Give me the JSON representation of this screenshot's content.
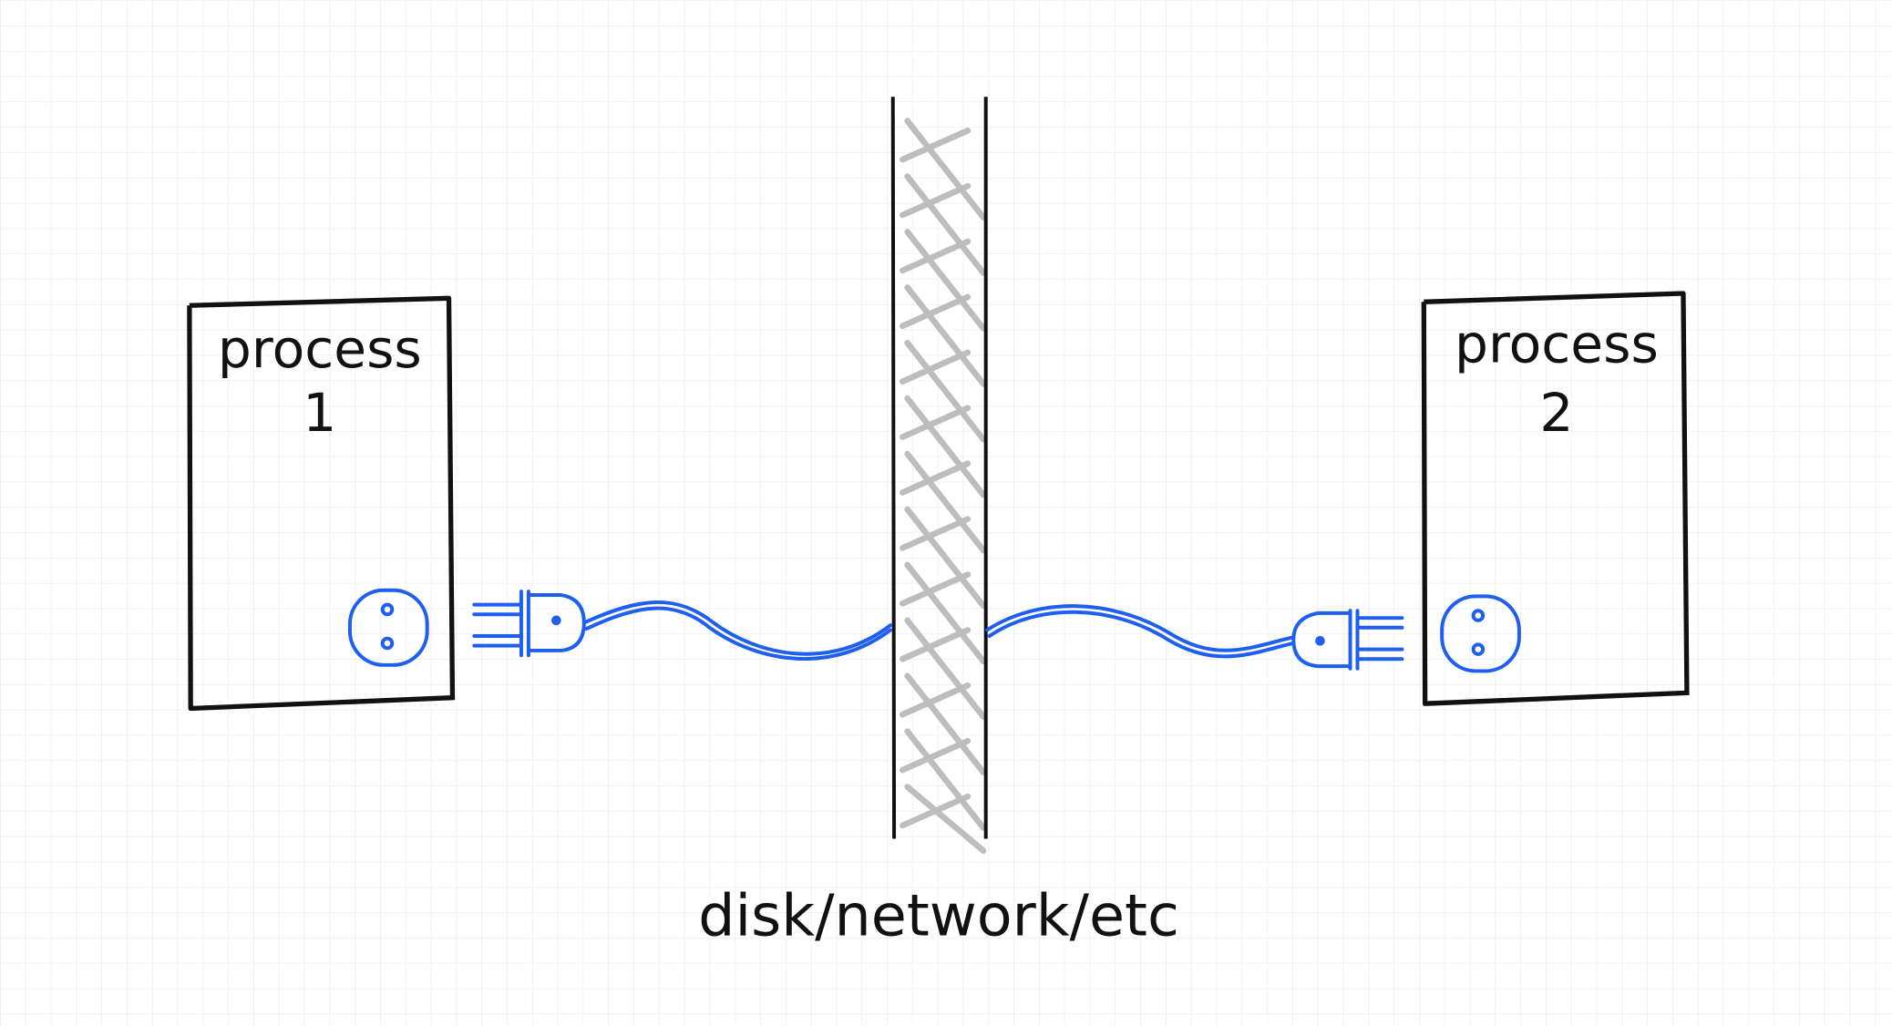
{
  "process_1": {
    "title": "process",
    "number": "1"
  },
  "process_2": {
    "title": "process",
    "number": "2"
  },
  "medium": {
    "label": "disk/network/etc"
  }
}
